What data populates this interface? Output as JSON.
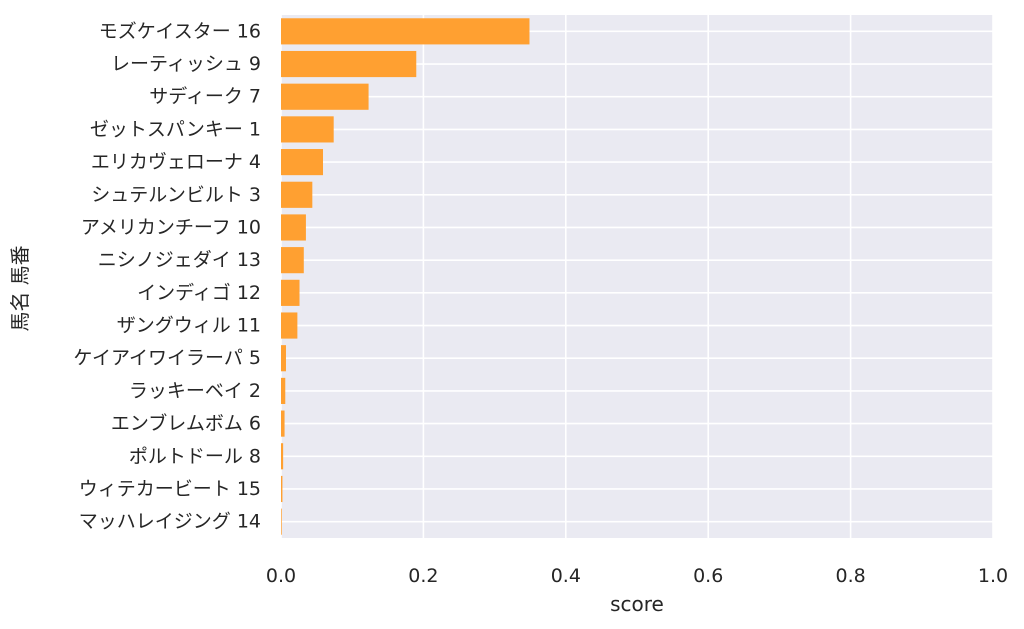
{
  "chart_data": {
    "type": "bar",
    "orientation": "horizontal",
    "categories": [
      "モズケイスター 16",
      "レーティッシュ 9",
      "サディーク 7",
      "ゼットスパンキー 1",
      "エリカヴェローナ 4",
      "シュテルンビルト 3",
      "アメリカンチーフ 10",
      "ニシノジェダイ 13",
      "インディゴ 12",
      "ザングウィル 11",
      "ケイアイワイラーパ 5",
      "ラッキーベイ 2",
      "エンブレムボム 6",
      "ポルトドール 8",
      "ウィテカービート 15",
      "マッハレイジング 14"
    ],
    "values": [
      0.349,
      0.19,
      0.123,
      0.074,
      0.059,
      0.044,
      0.035,
      0.032,
      0.026,
      0.023,
      0.007,
      0.006,
      0.005,
      0.003,
      0.002,
      0.001
    ],
    "xlabel": "score",
    "ylabel": "馬名 馬番",
    "xlim": [
      0,
      1.0
    ],
    "xticks": [
      "0.0",
      "0.2",
      "0.4",
      "0.6",
      "0.8",
      "1.0"
    ],
    "grid": true,
    "colors": {
      "bar": "#ffa031",
      "background": "#eaeaf2",
      "grid": "#ffffff"
    }
  }
}
